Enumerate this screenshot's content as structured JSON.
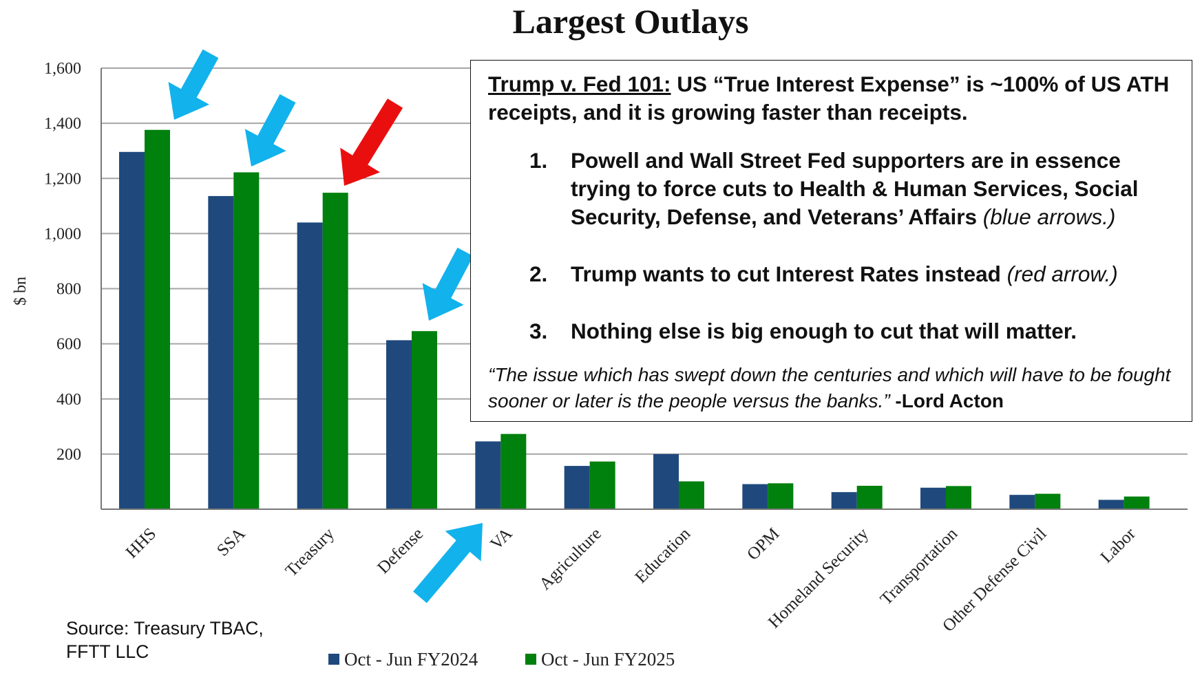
{
  "chart_data": {
    "type": "bar",
    "title": "Largest Outlays",
    "ylabel": "$ bn",
    "xlabel": "",
    "ylim": [
      0,
      1600
    ],
    "yticks": [
      200,
      400,
      600,
      800,
      1000,
      1200,
      1400,
      1600
    ],
    "ytick_labels": [
      "200",
      "400",
      "600",
      "800",
      "1,000",
      "1,200",
      "1,400",
      "1,600"
    ],
    "grid": true,
    "legend_position": "bottom",
    "categories": [
      "HHS",
      "SSA",
      "Treasury",
      "Defense",
      "VA",
      "Agriculture",
      "Education",
      "OPM",
      "Homeland Security",
      "Transportation",
      "Other Defense Civil",
      "Labor"
    ],
    "series": [
      {
        "name": "Oct - Jun FY2024",
        "color": "#1f497d",
        "values": [
          1296,
          1136,
          1040,
          613,
          246,
          157,
          200,
          91,
          62,
          78,
          52,
          34
        ]
      },
      {
        "name": "Oct - Jun FY2025",
        "color": "#00800d",
        "values": [
          1376,
          1222,
          1148,
          646,
          273,
          173,
          101,
          94,
          85,
          84,
          56,
          46
        ]
      }
    ],
    "annotations": [
      {
        "type": "arrow",
        "color": "#12b2ec",
        "meaning": "blue arrows",
        "targets": [
          "HHS",
          "SSA",
          "Defense",
          "VA"
        ]
      },
      {
        "type": "arrow",
        "color": "#ea0f0f",
        "meaning": "red arrow",
        "targets": [
          "Treasury"
        ]
      }
    ]
  },
  "callout": {
    "headline_underlined": "Trump v. Fed 101:",
    "headline_rest": " US “True Interest Expense” is ~100% of US ATH receipts, and it is growing faster than receipts.",
    "items": [
      {
        "num": "1.",
        "text": "Powell and Wall Street Fed supporters are in essence trying to force cuts to Health & Human Services, Social Security, Defense, and Veterans’ Affairs",
        "note": " (blue arrows.)"
      },
      {
        "num": "2.",
        "text": "Trump wants to cut Interest Rates instead",
        "note": " (red arrow.)"
      },
      {
        "num": "3.",
        "text": "Nothing else is big enough to cut that will matter.",
        "note": ""
      }
    ],
    "quote": "“The issue which has swept down the centuries and which will have to be fought sooner or later is the people versus the banks.”",
    "quote_author": " -Lord Acton"
  },
  "source": "Source: Treasury TBAC,\nFFTT LLC"
}
